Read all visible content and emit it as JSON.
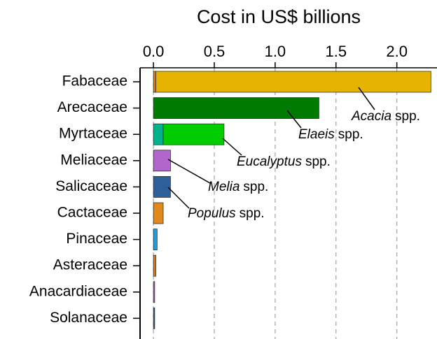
{
  "chart_data": {
    "type": "bar",
    "orientation": "horizontal",
    "x_label": "Cost in US$ billions",
    "xlim": [
      -0.11,
      2.33
    ],
    "xticks": [
      {
        "value": 0,
        "label": "0.0"
      },
      {
        "value": 0.5,
        "label": "0.5"
      },
      {
        "value": 1,
        "label": "1.0"
      },
      {
        "value": 1.5,
        "label": "1.5"
      },
      {
        "value": 2,
        "label": "2.0"
      }
    ],
    "grid": true,
    "bars": [
      {
        "category": "Fabaceae",
        "segments": [
          {
            "value": 0.02,
            "color": "#e07b10"
          },
          {
            "value": 2.26,
            "color": "#e6b400",
            "annotation": {
              "genus": "Acacia",
              "suffix": "spp."
            }
          }
        ]
      },
      {
        "category": "Arecaceae",
        "segments": [
          {
            "value": 1.36,
            "color": "#007a00",
            "annotation": {
              "genus": "Elaeis",
              "suffix": "spp."
            }
          }
        ]
      },
      {
        "category": "Myrtaceae",
        "segments": [
          {
            "value": 0.08,
            "color": "#00b38a"
          },
          {
            "value": 0.5,
            "color": "#00cc00",
            "annotation": {
              "genus": "Eucalyptus",
              "suffix": "spp."
            }
          }
        ]
      },
      {
        "category": "Meliaceae",
        "segments": [
          {
            "value": 0.14,
            "color": "#b266cc",
            "annotation": {
              "genus": "Melia",
              "suffix": "spp."
            }
          }
        ]
      },
      {
        "category": "Salicaceae",
        "segments": [
          {
            "value": 0.14,
            "color": "#2e5f99",
            "annotation": {
              "genus": "Populus",
              "suffix": "spp."
            }
          }
        ]
      },
      {
        "category": "Cactaceae",
        "segments": [
          {
            "value": 0.08,
            "color": "#e08a1e"
          }
        ]
      },
      {
        "category": "Pinaceae",
        "segments": [
          {
            "value": 0.03,
            "color": "#1aa0e0"
          }
        ]
      },
      {
        "category": "Asteraceae",
        "segments": [
          {
            "value": 0.02,
            "color": "#e07b10"
          }
        ]
      },
      {
        "category": "Anacardiaceae",
        "segments": [
          {
            "value": 0.01,
            "color": "#cc55cc"
          }
        ]
      },
      {
        "category": "Solanaceae",
        "segments": [
          {
            "value": 0.01,
            "color": "#2e5f99"
          }
        ]
      }
    ]
  }
}
